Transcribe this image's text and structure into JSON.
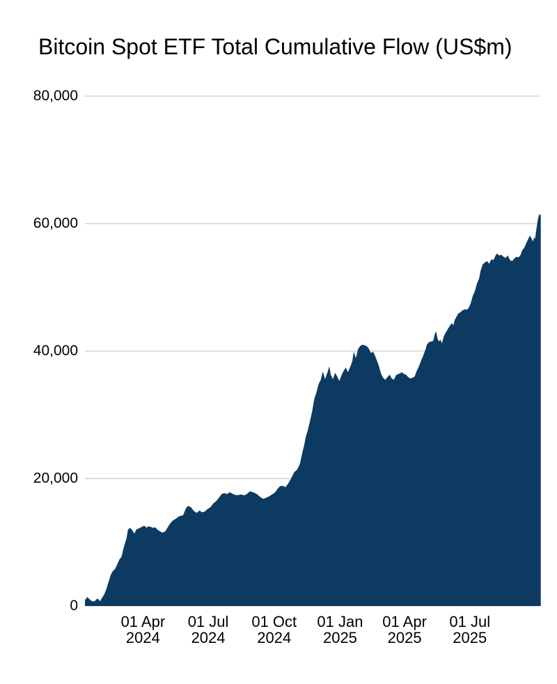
{
  "page": {
    "background_color": "#ffffff"
  },
  "chart": {
    "title": "Bitcoin Spot ETF Total Cumulative Flow (US$m)"
  },
  "chart_data": {
    "type": "area",
    "title": "Bitcoin Spot ETF Total Cumulative Flow (US$m)",
    "series_name": "Total cumulative flow",
    "unit": "US$m",
    "fill_color": "#0d3a61",
    "gridline_color": "#cbcbcb",
    "text_color": "#000000",
    "grid": true,
    "legend": "none",
    "ylim": [
      0,
      80000
    ],
    "x_domain": [
      "2024-01-11",
      "2025-10-08"
    ],
    "y_ticks": [
      {
        "value": 0,
        "label": "0"
      },
      {
        "value": 20000,
        "label": "20,000"
      },
      {
        "value": 40000,
        "label": "40,000"
      },
      {
        "value": 60000,
        "label": "60,000"
      },
      {
        "value": 80000,
        "label": "80,000"
      }
    ],
    "x_ticks": [
      {
        "date": "2024-04-01",
        "line1": "01 Apr",
        "line2": "2024"
      },
      {
        "date": "2024-07-01",
        "line1": "01 Jul",
        "line2": "2024"
      },
      {
        "date": "2024-10-01",
        "line1": "01 Oct",
        "line2": "2024"
      },
      {
        "date": "2025-01-01",
        "line1": "01 Jan",
        "line2": "2025"
      },
      {
        "date": "2025-04-01",
        "line1": "01 Apr",
        "line2": "2025"
      },
      {
        "date": "2025-07-01",
        "line1": "01 Jul",
        "line2": "2025"
      }
    ],
    "points": [
      [
        "2024-01-11",
        900
      ],
      [
        "2024-01-14",
        1400
      ],
      [
        "2024-01-17",
        1100
      ],
      [
        "2024-01-20",
        800
      ],
      [
        "2024-01-24",
        700
      ],
      [
        "2024-01-27",
        1050
      ],
      [
        "2024-01-29",
        1150
      ],
      [
        "2024-02-01",
        750
      ],
      [
        "2024-02-04",
        1300
      ],
      [
        "2024-02-07",
        1850
      ],
      [
        "2024-02-10",
        2700
      ],
      [
        "2024-02-13",
        3800
      ],
      [
        "2024-02-16",
        4900
      ],
      [
        "2024-02-19",
        5500
      ],
      [
        "2024-02-22",
        5800
      ],
      [
        "2024-02-25",
        6500
      ],
      [
        "2024-02-28",
        7300
      ],
      [
        "2024-03-02",
        7700
      ],
      [
        "2024-03-04",
        8700
      ],
      [
        "2024-03-07",
        9900
      ],
      [
        "2024-03-09",
        10600
      ],
      [
        "2024-03-11",
        12000
      ],
      [
        "2024-03-14",
        12250
      ],
      [
        "2024-03-17",
        11900
      ],
      [
        "2024-03-20",
        11350
      ],
      [
        "2024-03-23",
        12050
      ],
      [
        "2024-03-27",
        12200
      ],
      [
        "2024-03-30",
        12400
      ],
      [
        "2024-04-03",
        12600
      ],
      [
        "2024-04-06",
        12250
      ],
      [
        "2024-04-08",
        12500
      ],
      [
        "2024-04-12",
        12400
      ],
      [
        "2024-04-15",
        12250
      ],
      [
        "2024-04-18",
        12350
      ],
      [
        "2024-04-22",
        11900
      ],
      [
        "2024-04-25",
        11700
      ],
      [
        "2024-04-28",
        11500
      ],
      [
        "2024-05-02",
        11700
      ],
      [
        "2024-05-05",
        12250
      ],
      [
        "2024-05-08",
        12800
      ],
      [
        "2024-05-12",
        13350
      ],
      [
        "2024-05-14",
        13500
      ],
      [
        "2024-05-17",
        13700
      ],
      [
        "2024-05-21",
        14050
      ],
      [
        "2024-05-24",
        14150
      ],
      [
        "2024-05-27",
        14250
      ],
      [
        "2024-05-31",
        15350
      ],
      [
        "2024-06-03",
        15700
      ],
      [
        "2024-06-07",
        15500
      ],
      [
        "2024-06-11",
        14900
      ],
      [
        "2024-06-15",
        14600
      ],
      [
        "2024-06-19",
        15000
      ],
      [
        "2024-06-22",
        14700
      ],
      [
        "2024-06-26",
        14800
      ],
      [
        "2024-06-30",
        15200
      ],
      [
        "2024-07-04",
        15500
      ],
      [
        "2024-07-08",
        16100
      ],
      [
        "2024-07-12",
        16450
      ],
      [
        "2024-07-16",
        17000
      ],
      [
        "2024-07-20",
        17600
      ],
      [
        "2024-07-24",
        17700
      ],
      [
        "2024-07-27",
        17550
      ],
      [
        "2024-07-31",
        17850
      ],
      [
        "2024-08-04",
        17600
      ],
      [
        "2024-08-08",
        17400
      ],
      [
        "2024-08-12",
        17400
      ],
      [
        "2024-08-16",
        17500
      ],
      [
        "2024-08-20",
        17350
      ],
      [
        "2024-08-24",
        17550
      ],
      [
        "2024-08-28",
        18000
      ],
      [
        "2024-08-31",
        17900
      ],
      [
        "2024-09-04",
        17750
      ],
      [
        "2024-09-08",
        17450
      ],
      [
        "2024-09-12",
        17050
      ],
      [
        "2024-09-16",
        16800
      ],
      [
        "2024-09-20",
        17000
      ],
      [
        "2024-09-24",
        17200
      ],
      [
        "2024-09-28",
        17500
      ],
      [
        "2024-10-02",
        17800
      ],
      [
        "2024-10-06",
        18400
      ],
      [
        "2024-10-09",
        18800
      ],
      [
        "2024-10-13",
        18850
      ],
      [
        "2024-10-17",
        18650
      ],
      [
        "2024-10-21",
        19300
      ],
      [
        "2024-10-25",
        20100
      ],
      [
        "2024-10-29",
        21000
      ],
      [
        "2024-11-02",
        21400
      ],
      [
        "2024-11-06",
        22300
      ],
      [
        "2024-11-09",
        23900
      ],
      [
        "2024-11-12",
        25300
      ],
      [
        "2024-11-14",
        26500
      ],
      [
        "2024-11-17",
        27600
      ],
      [
        "2024-11-20",
        29000
      ],
      [
        "2024-11-23",
        30500
      ],
      [
        "2024-11-26",
        32500
      ],
      [
        "2024-11-29",
        33500
      ],
      [
        "2024-12-02",
        34800
      ],
      [
        "2024-12-05",
        35500
      ],
      [
        "2024-12-08",
        36800
      ],
      [
        "2024-12-11",
        35600
      ],
      [
        "2024-12-14",
        36500
      ],
      [
        "2024-12-17",
        37600
      ],
      [
        "2024-12-19",
        36300
      ],
      [
        "2024-12-22",
        35600
      ],
      [
        "2024-12-25",
        36600
      ],
      [
        "2024-12-28",
        36000
      ],
      [
        "2024-12-31",
        35300
      ],
      [
        "2025-01-03",
        36200
      ],
      [
        "2025-01-06",
        36900
      ],
      [
        "2025-01-09",
        37400
      ],
      [
        "2025-01-12",
        36700
      ],
      [
        "2025-01-15",
        37500
      ],
      [
        "2025-01-18",
        38400
      ],
      [
        "2025-01-20",
        39900
      ],
      [
        "2025-01-23",
        38900
      ],
      [
        "2025-01-26",
        40300
      ],
      [
        "2025-01-29",
        40800
      ],
      [
        "2025-02-01",
        41000
      ],
      [
        "2025-02-04",
        40900
      ],
      [
        "2025-02-07",
        40800
      ],
      [
        "2025-02-10",
        40400
      ],
      [
        "2025-02-13",
        39700
      ],
      [
        "2025-02-16",
        39900
      ],
      [
        "2025-02-19",
        39200
      ],
      [
        "2025-02-21",
        38600
      ],
      [
        "2025-02-24",
        37700
      ],
      [
        "2025-02-27",
        36500
      ],
      [
        "2025-03-02",
        35800
      ],
      [
        "2025-03-05",
        35500
      ],
      [
        "2025-03-08",
        35900
      ],
      [
        "2025-03-11",
        36300
      ],
      [
        "2025-03-14",
        35700
      ],
      [
        "2025-03-17",
        35500
      ],
      [
        "2025-03-20",
        36200
      ],
      [
        "2025-03-23",
        36400
      ],
      [
        "2025-03-26",
        36500
      ],
      [
        "2025-03-28",
        36700
      ],
      [
        "2025-03-31",
        36400
      ],
      [
        "2025-04-03",
        36300
      ],
      [
        "2025-04-06",
        35900
      ],
      [
        "2025-04-09",
        35700
      ],
      [
        "2025-04-12",
        35800
      ],
      [
        "2025-04-15",
        36000
      ],
      [
        "2025-04-18",
        36900
      ],
      [
        "2025-04-21",
        37600
      ],
      [
        "2025-04-24",
        38500
      ],
      [
        "2025-04-27",
        39300
      ],
      [
        "2025-04-30",
        40200
      ],
      [
        "2025-05-02",
        41000
      ],
      [
        "2025-05-05",
        41400
      ],
      [
        "2025-05-08",
        41500
      ],
      [
        "2025-05-11",
        41600
      ],
      [
        "2025-05-13",
        42600
      ],
      [
        "2025-05-15",
        43100
      ],
      [
        "2025-05-17",
        41900
      ],
      [
        "2025-05-19",
        41500
      ],
      [
        "2025-05-21",
        41800
      ],
      [
        "2025-05-23",
        41200
      ],
      [
        "2025-05-26",
        42400
      ],
      [
        "2025-05-29",
        43000
      ],
      [
        "2025-06-01",
        43600
      ],
      [
        "2025-06-04",
        44100
      ],
      [
        "2025-06-06",
        44400
      ],
      [
        "2025-06-08",
        44000
      ],
      [
        "2025-06-10",
        44900
      ],
      [
        "2025-06-12",
        45300
      ],
      [
        "2025-06-15",
        45900
      ],
      [
        "2025-06-18",
        46100
      ],
      [
        "2025-06-21",
        46400
      ],
      [
        "2025-06-24",
        46550
      ],
      [
        "2025-06-27",
        46500
      ],
      [
        "2025-06-29",
        46700
      ],
      [
        "2025-07-02",
        47400
      ],
      [
        "2025-07-05",
        48600
      ],
      [
        "2025-07-08",
        49400
      ],
      [
        "2025-07-11",
        50600
      ],
      [
        "2025-07-14",
        51400
      ],
      [
        "2025-07-16",
        52600
      ],
      [
        "2025-07-19",
        53600
      ],
      [
        "2025-07-22",
        53900
      ],
      [
        "2025-07-25",
        54100
      ],
      [
        "2025-07-28",
        53700
      ],
      [
        "2025-07-31",
        54400
      ],
      [
        "2025-08-03",
        54300
      ],
      [
        "2025-08-06",
        55000
      ],
      [
        "2025-08-08",
        55300
      ],
      [
        "2025-08-11",
        55000
      ],
      [
        "2025-08-14",
        55100
      ],
      [
        "2025-08-17",
        54800
      ],
      [
        "2025-08-20",
        54600
      ],
      [
        "2025-08-23",
        55000
      ],
      [
        "2025-08-26",
        54300
      ],
      [
        "2025-08-29",
        54100
      ],
      [
        "2025-09-01",
        54500
      ],
      [
        "2025-09-04",
        54800
      ],
      [
        "2025-09-07",
        54700
      ],
      [
        "2025-09-10",
        55100
      ],
      [
        "2025-09-12",
        55800
      ],
      [
        "2025-09-15",
        56200
      ],
      [
        "2025-09-18",
        57000
      ],
      [
        "2025-09-21",
        57700
      ],
      [
        "2025-09-23",
        58100
      ],
      [
        "2025-09-25",
        57700
      ],
      [
        "2025-09-27",
        57200
      ],
      [
        "2025-09-29",
        57900
      ],
      [
        "2025-09-30",
        57600
      ],
      [
        "2025-10-02",
        59200
      ],
      [
        "2025-10-04",
        60700
      ],
      [
        "2025-10-06",
        61500
      ],
      [
        "2025-10-08",
        61300
      ]
    ]
  }
}
